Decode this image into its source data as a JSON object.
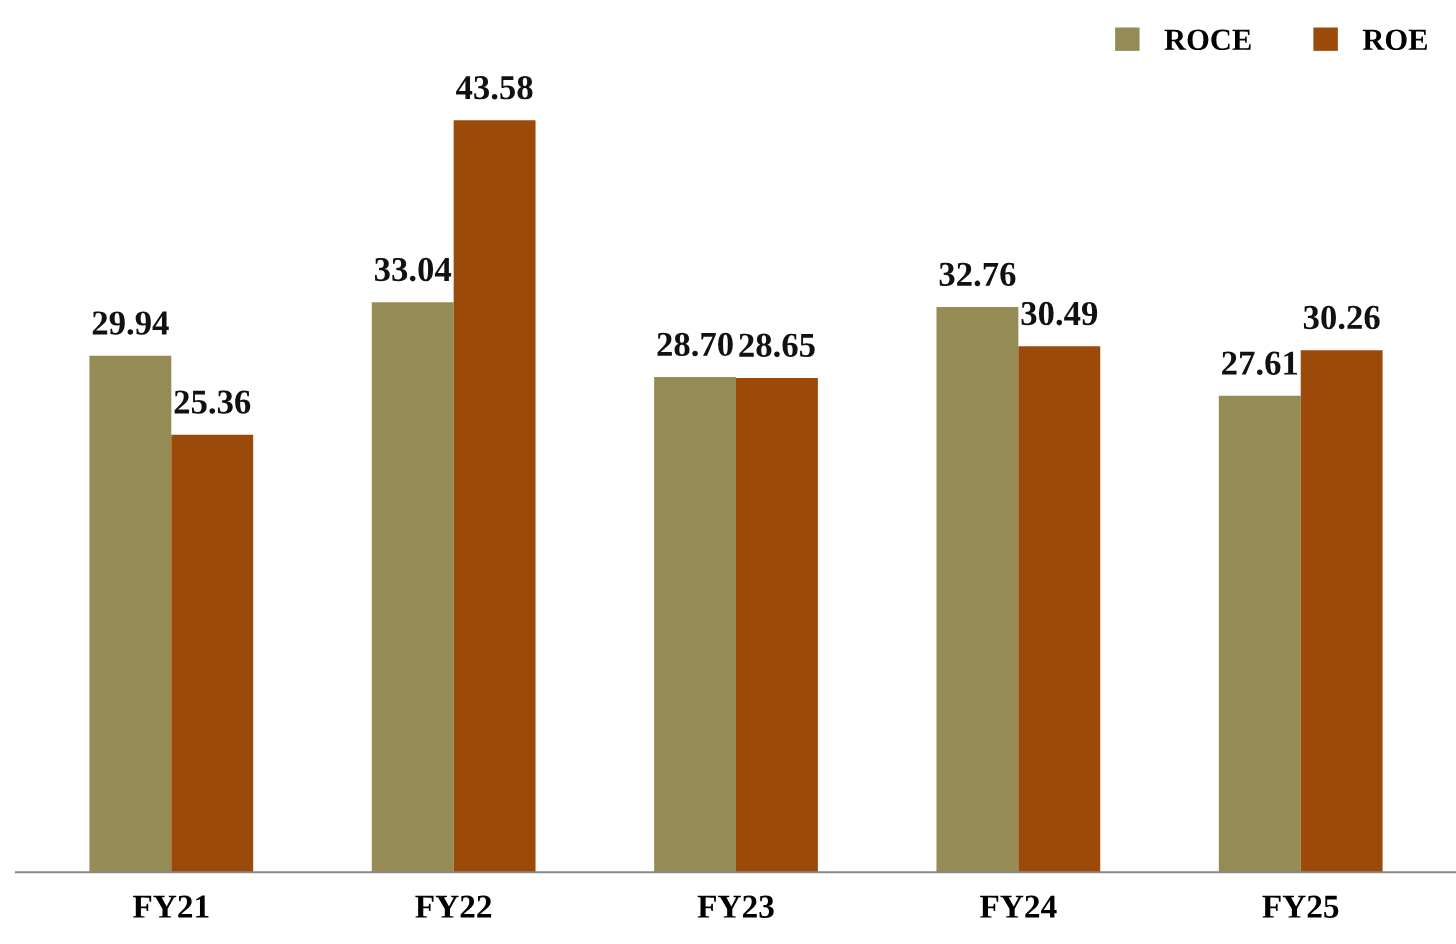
{
  "chart_data": {
    "type": "bar",
    "categories": [
      "FY21",
      "FY22",
      "FY23",
      "FY24",
      "FY25"
    ],
    "series": [
      {
        "name": "ROCE",
        "color": "#958b55",
        "values": [
          29.94,
          33.04,
          28.7,
          32.76,
          27.61
        ],
        "value_labels": [
          "29.94",
          "33.04",
          "28.70",
          "32.76",
          "27.61"
        ]
      },
      {
        "name": "ROE",
        "color": "#9c4a0a",
        "values": [
          25.36,
          43.58,
          28.65,
          30.49,
          30.26
        ],
        "value_labels": [
          "25.36",
          "43.58",
          "28.65",
          "30.49",
          "30.26"
        ]
      }
    ],
    "grid": false,
    "legend": "top right"
  }
}
